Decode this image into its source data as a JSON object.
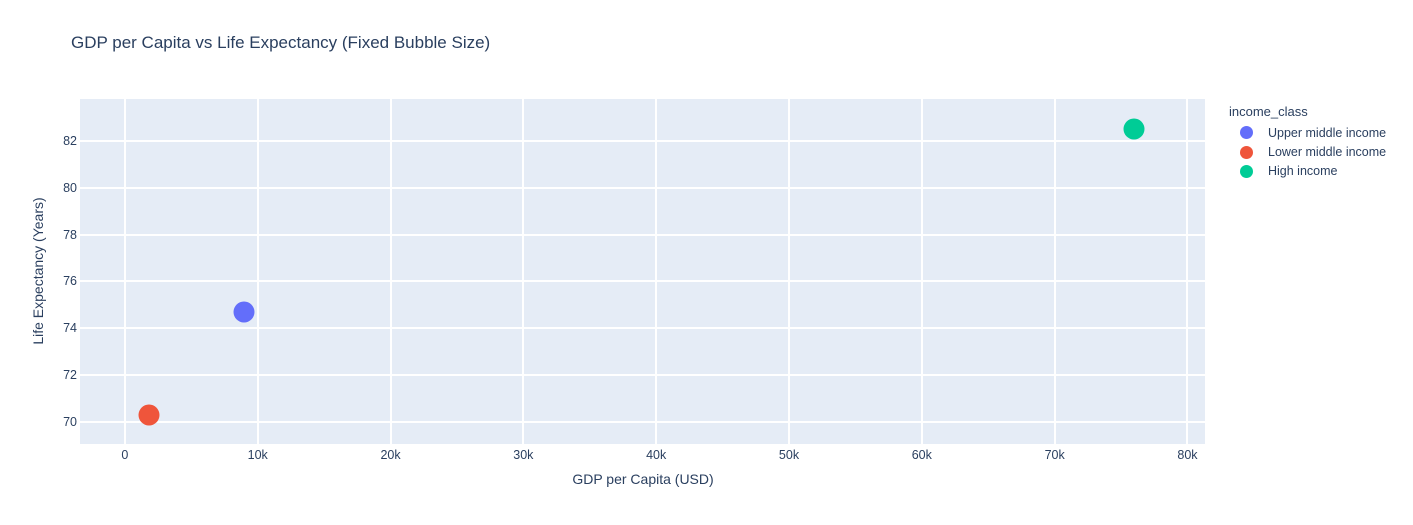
{
  "page": {
    "background_color": "#FFFFFF"
  },
  "chart_data": {
    "type": "scatter",
    "title": "GDP per Capita vs Life Expectancy (Fixed Bubble Size)",
    "xlabel": "GDP per Capita (USD)",
    "ylabel": "Life Expectancy (Years)",
    "legend_title": "income_class",
    "legend_position": "right",
    "grid": true,
    "xlim": [
      -3380,
      81320
    ],
    "ylim": [
      69.05,
      83.8
    ],
    "xticks": {
      "values": [
        0,
        10000,
        20000,
        30000,
        40000,
        50000,
        60000,
        70000,
        80000
      ],
      "labels": [
        "0",
        "10k",
        "20k",
        "30k",
        "40k",
        "50k",
        "60k",
        "70k",
        "80k"
      ]
    },
    "yticks": {
      "values": [
        70,
        72,
        74,
        76,
        78,
        80,
        82
      ],
      "labels": [
        "70",
        "72",
        "74",
        "76",
        "78",
        "80",
        "82"
      ]
    },
    "plot_bg_color": "#E5ECF6",
    "grid_color": "#FFFFFF",
    "font_color": "#2a3f5f",
    "marker_diameter_px": 21,
    "series": [
      {
        "name": "Upper middle income",
        "color": "#636EFA",
        "points": [
          {
            "x": 9000,
            "y": 74.7
          }
        ]
      },
      {
        "name": "Lower middle income",
        "color": "#EF553B",
        "points": [
          {
            "x": 1800,
            "y": 70.3
          }
        ]
      },
      {
        "name": "High income",
        "color": "#00CC96",
        "points": [
          {
            "x": 76000,
            "y": 82.5
          }
        ]
      }
    ]
  }
}
